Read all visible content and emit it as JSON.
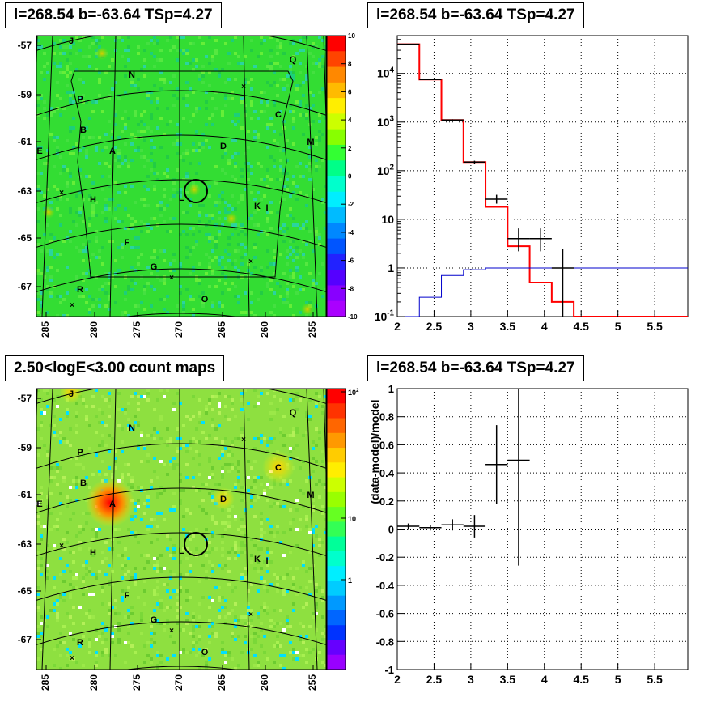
{
  "panels": {
    "top_left": {
      "title": "l=268.54 b=-63.64 TSp=4.27"
    },
    "top_right": {
      "title": "l=268.54 b=-63.64 TSp=4.27"
    },
    "bottom_left": {
      "title": "2.50<logE<3.00 count maps"
    },
    "bottom_right": {
      "title": "l=268.54 b=-63.64 TSp=4.27"
    }
  },
  "chart_data": [
    {
      "id": "tl-residual-map",
      "type": "heatmap",
      "title": "l=268.54 b=-63.64 TSp=4.27",
      "x_ticks": [
        "285",
        "280",
        "275",
        "270",
        "265",
        "260",
        "255"
      ],
      "y_ticks": [
        "-57",
        "-59",
        "-61",
        "-63",
        "-65",
        "-67"
      ],
      "colorbar_ticks": [
        "10",
        "8",
        "6",
        "4",
        "2",
        "0",
        "-2",
        "-4",
        "-6",
        "-8",
        "-10"
      ],
      "colorbar_range": [
        -10,
        10
      ],
      "sources": [
        "J",
        "N",
        "Q",
        "P",
        "C",
        "B",
        "E",
        "A",
        "D",
        "M",
        "H",
        "L",
        "K",
        "I",
        "F",
        "G",
        "R",
        "O"
      ],
      "target_marker": {
        "l": 268.54,
        "b": -63.64
      }
    },
    {
      "id": "tr-spectrum",
      "type": "line",
      "title": "l=268.54 b=-63.64 TSp=4.27",
      "x_ticks": [
        "2",
        "2.5",
        "3",
        "3.5",
        "4",
        "4.5",
        "5",
        "5.5"
      ],
      "y_ticks": [
        "10^-1",
        "1",
        "10",
        "10^2",
        "10^3",
        "10^4"
      ],
      "xlim": [
        2.0,
        5.95
      ],
      "ylim": [
        0.1,
        60000
      ],
      "y_scale": "log",
      "grid": true,
      "series": [
        {
          "step_edges": [
            2.0,
            2.3,
            2.6,
            2.9,
            3.2,
            3.5,
            3.8,
            4.1,
            4.4,
            5.95
          ],
          "values": [
            40000,
            7500,
            1100,
            150,
            18,
            2.8,
            0.5,
            0.2,
            0.1
          ],
          "color": "#ff0000"
        },
        {
          "step_edges": [
            2.0,
            2.3,
            2.6,
            2.9,
            3.2,
            3.5,
            3.8,
            4.1,
            4.4,
            5.95
          ],
          "values": [
            0.06,
            0.25,
            0.7,
            0.92,
            1.0,
            1.0,
            1.0,
            1.0,
            1.0
          ],
          "color": "#0000cc"
        },
        {
          "points": [
            {
              "x": 2.15,
              "y": 40000,
              "xerr": 0.15,
              "ylo": 39500,
              "yhi": 40500
            },
            {
              "x": 2.45,
              "y": 7500,
              "xerr": 0.15,
              "ylo": 7350,
              "yhi": 7650
            },
            {
              "x": 2.75,
              "y": 1100,
              "xerr": 0.15,
              "ylo": 1060,
              "yhi": 1140
            },
            {
              "x": 3.05,
              "y": 150,
              "xerr": 0.15,
              "ylo": 140,
              "yhi": 160
            },
            {
              "x": 3.35,
              "y": 26,
              "xerr": 0.15,
              "ylo": 21,
              "yhi": 32
            },
            {
              "x": 3.65,
              "y": 4,
              "xerr": 0.15,
              "ylo": 2.2,
              "yhi": 6.5
            },
            {
              "x": 3.95,
              "y": 4,
              "xerr": 0.15,
              "ylo": 2.2,
              "yhi": 6.5
            },
            {
              "x": 4.25,
              "y": 1,
              "xerr": 0.15,
              "ylo": 0.1,
              "yhi": 2.5
            }
          ],
          "color": "#000000"
        }
      ]
    },
    {
      "id": "bl-count-map",
      "type": "heatmap",
      "title": "2.50<logE<3.00 count maps",
      "x_ticks": [
        "285",
        "280",
        "275",
        "270",
        "265",
        "260",
        "255"
      ],
      "y_ticks": [
        "-57",
        "-59",
        "-61",
        "-63",
        "-65",
        "-67"
      ],
      "colorbar_ticks": [
        "10^2",
        "10",
        "1"
      ],
      "colorbar_scale": "log",
      "sources": [
        "J",
        "N",
        "Q",
        "P",
        "C",
        "B",
        "E",
        "A",
        "D",
        "M",
        "H",
        "L",
        "K",
        "I",
        "F",
        "G",
        "R",
        "O"
      ],
      "target_marker": {
        "l": 268.54,
        "b": -63.64
      }
    },
    {
      "id": "br-residual",
      "type": "scatter",
      "title": "l=268.54 b=-63.64 TSp=4.27",
      "ylabel": "(data-model)/model",
      "x_ticks": [
        "2",
        "2.5",
        "3",
        "3.5",
        "4",
        "4.5",
        "5",
        "5.5"
      ],
      "y_ticks": [
        "-1",
        "-0.8",
        "-0.6",
        "-0.4",
        "-0.2",
        "0",
        "0.2",
        "0.4",
        "0.6",
        "0.8",
        "1"
      ],
      "xlim": [
        2.0,
        5.95
      ],
      "ylim": [
        -1,
        1
      ],
      "grid": true,
      "points": [
        {
          "x": 2.15,
          "y": 0.02,
          "xerr": 0.15,
          "yerr": 0.02
        },
        {
          "x": 2.45,
          "y": 0.01,
          "xerr": 0.15,
          "yerr": 0.02
        },
        {
          "x": 2.75,
          "y": 0.03,
          "xerr": 0.15,
          "yerr": 0.04
        },
        {
          "x": 3.05,
          "y": 0.02,
          "xerr": 0.15,
          "yerr": 0.08
        },
        {
          "x": 3.35,
          "y": 0.46,
          "xerr": 0.15,
          "yerr": 0.28
        },
        {
          "x": 3.65,
          "y": 0.49,
          "xerr": 0.15,
          "yerr": 0.75
        }
      ]
    }
  ]
}
